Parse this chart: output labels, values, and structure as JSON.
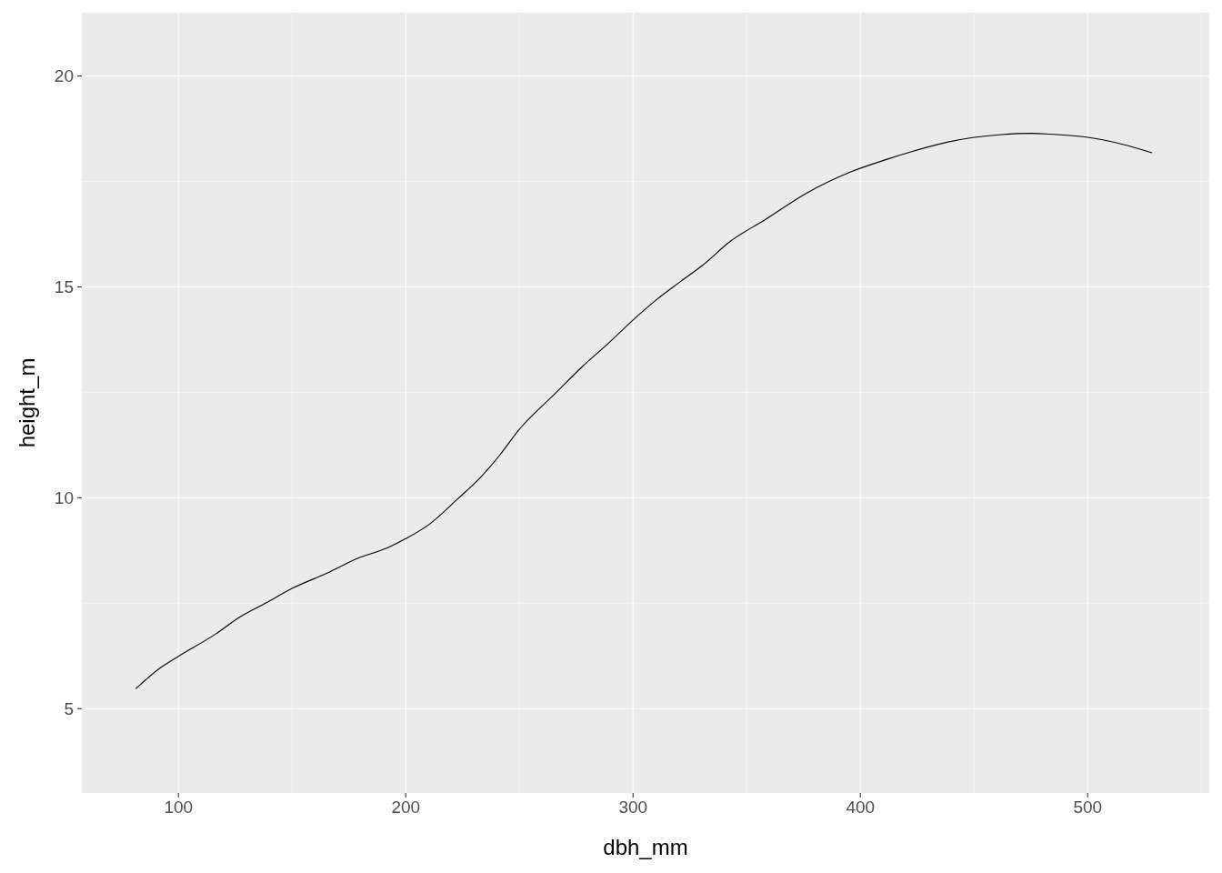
{
  "chart_data": {
    "type": "line",
    "xlabel": "dbh_mm",
    "ylabel": "height_m",
    "xlim": [
      57.5,
      553.5
    ],
    "ylim": [
      3.0,
      21.5
    ],
    "xticks": [
      100,
      200,
      300,
      400,
      500
    ],
    "yticks": [
      5,
      10,
      15,
      20
    ],
    "grid": true,
    "marker": "none",
    "line_style": "solid",
    "series": [
      {
        "color": "#000000",
        "x": [
          81.2,
          92.1,
          100,
          116.1,
          126.7,
          138.7,
          150,
          165.3,
          178.6,
          191.9,
          200,
          210.6,
          222.6,
          233.2,
          241.2,
          249.8,
          266.5,
          277.1,
          289.1,
          299.7,
          310.4,
          321.0,
          331.7,
          342.3,
          358.3,
          375.6,
          395.5,
          411.5,
          422.2,
          438.1,
          462.1,
          475.4,
          483.4,
          499.4,
          515.4,
          528.3
        ],
        "values": [
          5.47,
          5.97,
          6.24,
          6.76,
          7.16,
          7.51,
          7.85,
          8.21,
          8.56,
          8.81,
          9.03,
          9.38,
          9.96,
          10.5,
          11.0,
          11.61,
          12.51,
          13.08,
          13.66,
          14.2,
          14.7,
          15.13,
          15.56,
          16.06,
          16.6,
          17.2,
          17.72,
          18.02,
          18.2,
          18.43,
          18.61,
          18.64,
          18.62,
          18.55,
          18.38,
          18.18
        ]
      }
    ]
  }
}
